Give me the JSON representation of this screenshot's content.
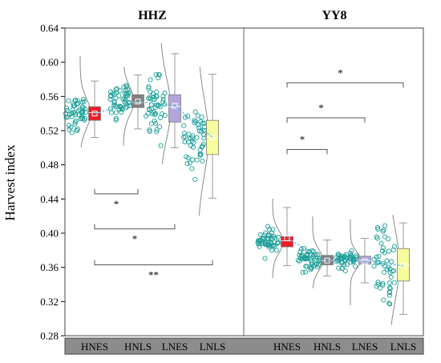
{
  "chart_data": {
    "type": "box-scatter",
    "ylabel": "Harvest index",
    "ylim": [
      0.28,
      0.64
    ],
    "yticks": [
      0.28,
      0.32,
      0.36,
      0.4,
      0.44,
      0.48,
      0.52,
      0.56,
      0.6,
      0.64
    ],
    "ytick_labels": [
      "0.28",
      "0.32",
      "0.36",
      "0.40",
      "0.44",
      "0.48",
      "0.52",
      "0.56",
      "0.60",
      "0.64"
    ],
    "categories": [
      "HNES",
      "HNLS",
      "LNES",
      "LNLS"
    ],
    "category_colors": {
      "HNES": "#ee1c25",
      "HNLS": "#808080",
      "LNES": "#b3a5dc",
      "LNLS": "#f7fc9c"
    },
    "point_color": "#1a9e96",
    "panels": [
      {
        "title": "HHZ",
        "boxes": [
          {
            "category": "HNES",
            "q1": 0.532,
            "q3": 0.548,
            "median": 0.541,
            "mean": 0.54,
            "whisker_low": 0.512,
            "whisker_high": 0.578,
            "points_min": 0.51,
            "points_max": 0.598
          },
          {
            "category": "HNLS",
            "q1": 0.547,
            "q3": 0.562,
            "median": 0.553,
            "mean": 0.554,
            "whisker_low": 0.522,
            "whisker_high": 0.585,
            "points_min": 0.512,
            "points_max": 0.585
          },
          {
            "category": "LNES",
            "q1": 0.53,
            "q3": 0.562,
            "median": 0.548,
            "mean": 0.549,
            "whisker_low": 0.5,
            "whisker_high": 0.61,
            "points_min": 0.49,
            "points_max": 0.613
          },
          {
            "category": "LNLS",
            "q1": 0.492,
            "q3": 0.532,
            "median": 0.512,
            "mean": 0.512,
            "whisker_low": 0.441,
            "whisker_high": 0.586,
            "points_min": 0.43,
            "points_max": 0.585
          }
        ],
        "significance": [
          {
            "from": "HNES",
            "to": "HNLS",
            "y": 0.446,
            "label": "*"
          },
          {
            "from": "HNES",
            "to": "LNES",
            "y": 0.405,
            "label": "*"
          },
          {
            "from": "HNES",
            "to": "LNLS",
            "y": 0.363,
            "label": "**"
          }
        ]
      },
      {
        "title": "YY8",
        "boxes": [
          {
            "category": "HNES",
            "q1": 0.384,
            "q3": 0.396,
            "median": 0.391,
            "mean": 0.394,
            "whisker_low": 0.362,
            "whisker_high": 0.43,
            "points_min": 0.357,
            "points_max": 0.431
          },
          {
            "category": "HNLS",
            "q1": 0.363,
            "q3": 0.374,
            "median": 0.368,
            "mean": 0.368,
            "whisker_low": 0.35,
            "whisker_high": 0.392,
            "points_min": 0.345,
            "points_max": 0.41
          },
          {
            "category": "LNES",
            "q1": 0.364,
            "q3": 0.373,
            "median": 0.368,
            "mean": 0.367,
            "whisker_low": 0.342,
            "whisker_high": 0.394,
            "points_min": 0.325,
            "points_max": 0.407
          },
          {
            "category": "LNLS",
            "q1": 0.344,
            "q3": 0.382,
            "median": 0.363,
            "mean": 0.362,
            "whisker_low": 0.305,
            "whisker_high": 0.412,
            "points_min": 0.302,
            "points_max": 0.412
          }
        ],
        "significance": [
          {
            "from": "HNES",
            "to": "HNLS",
            "y": 0.498,
            "label": "*"
          },
          {
            "from": "HNES",
            "to": "LNES",
            "y": 0.535,
            "label": "*"
          },
          {
            "from": "HNES",
            "to": "LNLS",
            "y": 0.576,
            "label": "*"
          }
        ]
      }
    ]
  }
}
